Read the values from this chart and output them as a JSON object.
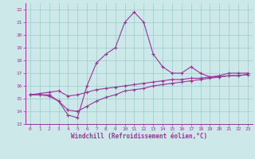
{
  "xlabel": "Windchill (Refroidissement éolien,°C)",
  "bg_color": "#cce8e8",
  "grid_color": "#99cccc",
  "line_color": "#993399",
  "xlim": [
    -0.5,
    23.5
  ],
  "ylim": [
    13,
    22.5
  ],
  "xticks": [
    0,
    1,
    2,
    3,
    4,
    5,
    6,
    7,
    8,
    9,
    10,
    11,
    12,
    13,
    14,
    15,
    16,
    17,
    18,
    19,
    20,
    21,
    22,
    23
  ],
  "yticks": [
    13,
    14,
    15,
    16,
    17,
    18,
    19,
    20,
    21,
    22
  ],
  "line1_x": [
    0,
    1,
    2,
    3,
    4,
    5,
    6,
    7,
    8,
    9,
    10,
    11,
    12,
    13,
    14,
    15,
    16,
    17,
    18,
    19,
    20,
    21,
    22,
    23
  ],
  "line1_y": [
    15.3,
    15.3,
    15.3,
    14.8,
    13.7,
    13.5,
    16.0,
    17.8,
    18.5,
    19.0,
    21.0,
    21.8,
    21.0,
    18.5,
    17.5,
    17.0,
    17.0,
    17.5,
    17.0,
    16.7,
    16.8,
    17.0,
    17.0,
    17.0
  ],
  "line2_x": [
    0,
    1,
    2,
    3,
    4,
    5,
    6,
    7,
    8,
    9,
    10,
    11,
    12,
    13,
    14,
    15,
    16,
    17,
    18,
    19,
    20,
    21,
    22,
    23
  ],
  "line2_y": [
    15.3,
    15.4,
    15.5,
    15.6,
    15.2,
    15.3,
    15.5,
    15.7,
    15.8,
    15.9,
    16.0,
    16.1,
    16.2,
    16.3,
    16.4,
    16.5,
    16.5,
    16.6,
    16.6,
    16.7,
    16.7,
    16.8,
    16.8,
    16.9
  ],
  "line3_x": [
    0,
    1,
    2,
    3,
    4,
    5,
    6,
    7,
    8,
    9,
    10,
    11,
    12,
    13,
    14,
    15,
    16,
    17,
    18,
    19,
    20,
    21,
    22,
    23
  ],
  "line3_y": [
    15.3,
    15.3,
    15.2,
    14.8,
    14.1,
    14.0,
    14.4,
    14.8,
    15.1,
    15.3,
    15.6,
    15.7,
    15.8,
    16.0,
    16.1,
    16.2,
    16.3,
    16.4,
    16.5,
    16.6,
    16.7,
    16.8,
    16.8,
    16.9
  ],
  "tick_fontsize": 4.5,
  "xlabel_fontsize": 5.5,
  "marker_size": 2.5,
  "linewidth": 0.8
}
